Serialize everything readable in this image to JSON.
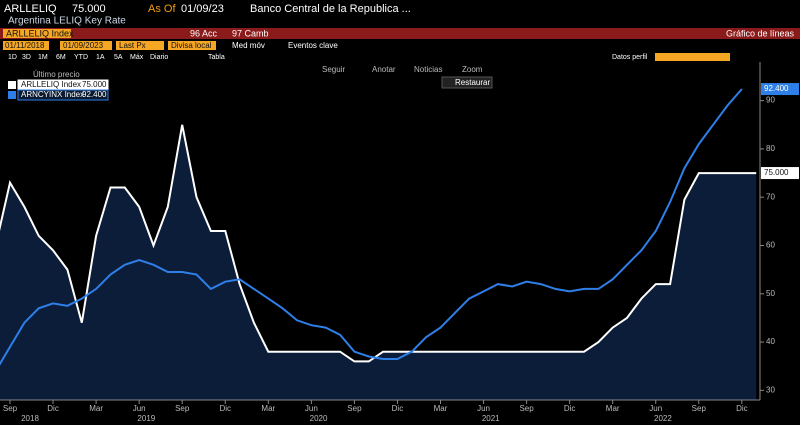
{
  "header": {
    "ticker": "ARLLELIQ",
    "last": "75.000",
    "as_of_label": "As Of",
    "as_of": "01/09/23",
    "source": "Banco Central de la Republica ...",
    "description": "Argentina LELIQ Key Rate"
  },
  "toolbar": {
    "security": "ARLLELIQ Index",
    "actions": "96 Acc",
    "settings": "97 Camb",
    "chart_type": "Gráfico de líneas",
    "start_date": "01/11/2018",
    "end_date": "01/09/2023",
    "field": "Last Px",
    "currency": "Divisa local",
    "moving_avg": "Med móv",
    "events": "Eventos clave",
    "ranges": [
      "1D",
      "3D",
      "1M",
      "6M",
      "YTD",
      "1A",
      "5A",
      "Máx"
    ],
    "frequency": "Diario",
    "table": "Tabla",
    "profile": "Datos perfil"
  },
  "chart_tools": [
    "Seguir",
    "Anotar",
    "Noticias",
    "Zoom"
  ],
  "restore": "Restaurar",
  "chart_data": {
    "type": "line",
    "legend_title": "Último precio",
    "x": [
      "2018-08",
      "2018-09",
      "2018-10",
      "2018-11",
      "2018-12",
      "2019-01",
      "2019-02",
      "2019-03",
      "2019-04",
      "2019-05",
      "2019-06",
      "2019-07",
      "2019-08",
      "2019-09",
      "2019-10",
      "2019-11",
      "2019-12",
      "2020-01",
      "2020-02",
      "2020-03",
      "2020-04",
      "2020-05",
      "2020-06",
      "2020-07",
      "2020-08",
      "2020-09",
      "2020-10",
      "2020-11",
      "2020-12",
      "2021-01",
      "2021-02",
      "2021-03",
      "2021-04",
      "2021-05",
      "2021-06",
      "2021-07",
      "2021-08",
      "2021-09",
      "2021-10",
      "2021-11",
      "2021-12",
      "2022-01",
      "2022-02",
      "2022-03",
      "2022-04",
      "2022-05",
      "2022-06",
      "2022-07",
      "2022-08",
      "2022-09",
      "2022-10",
      "2022-11",
      "2022-12",
      "2023-01"
    ],
    "series": [
      {
        "name": "ARLLELIQ Index",
        "color": "#ffffff",
        "fill": "#0c1d3a",
        "last_value_label": "75.000",
        "values": [
          60,
          73,
          68,
          62,
          59,
          55,
          44,
          62,
          72,
          72,
          68,
          60,
          68,
          85,
          70,
          63,
          63,
          52,
          44,
          38,
          38,
          38,
          38,
          38,
          38,
          36,
          36,
          38,
          38,
          38,
          38,
          38,
          38,
          38,
          38,
          38,
          38,
          38,
          38,
          38,
          38,
          38,
          40,
          43,
          45,
          49,
          52,
          52,
          69.5,
          75,
          75,
          75,
          75,
          75
        ]
      },
      {
        "name": "ARNCYINX Index",
        "color": "#2f7fe8",
        "last_value_label": "92.400",
        "values": [
          34,
          39,
          44,
          47,
          48,
          47.5,
          49,
          51,
          54,
          56,
          57,
          56,
          54.5,
          54.5,
          54,
          51,
          52.5,
          53,
          51,
          49,
          47,
          44.5,
          43.5,
          43,
          41.5,
          38,
          37,
          36.5,
          36.5,
          38,
          41,
          43,
          46,
          49,
          50.5,
          52,
          51.5,
          52.5,
          52,
          51,
          50.5,
          51,
          51,
          53,
          56,
          59,
          63,
          69,
          76,
          81,
          85,
          89,
          92.4,
          null
        ]
      }
    ],
    "xticks": [
      {
        "value": "2018-09",
        "label": "Sep"
      },
      {
        "value": "2018-12",
        "label": "Dic"
      },
      {
        "value": "2019-03",
        "label": "Mar"
      },
      {
        "value": "2019-06",
        "label": "Jun"
      },
      {
        "value": "2019-09",
        "label": "Sep"
      },
      {
        "value": "2019-12",
        "label": "Dic"
      },
      {
        "value": "2020-03",
        "label": "Mar"
      },
      {
        "value": "2020-06",
        "label": "Jun"
      },
      {
        "value": "2020-09",
        "label": "Sep"
      },
      {
        "value": "2020-12",
        "label": "Dic"
      },
      {
        "value": "2021-03",
        "label": "Mar"
      },
      {
        "value": "2021-06",
        "label": "Jun"
      },
      {
        "value": "2021-09",
        "label": "Sep"
      },
      {
        "value": "2021-12",
        "label": "Dic"
      },
      {
        "value": "2022-03",
        "label": "Mar"
      },
      {
        "value": "2022-06",
        "label": "Jun"
      },
      {
        "value": "2022-09",
        "label": "Sep"
      },
      {
        "value": "2022-12",
        "label": "Dic"
      }
    ],
    "years": [
      "2018",
      "2019",
      "2020",
      "2021",
      "2022"
    ],
    "ylim": [
      28,
      98
    ],
    "yticks": [
      30,
      40,
      50,
      60,
      70,
      80,
      90
    ],
    "grid": false
  }
}
